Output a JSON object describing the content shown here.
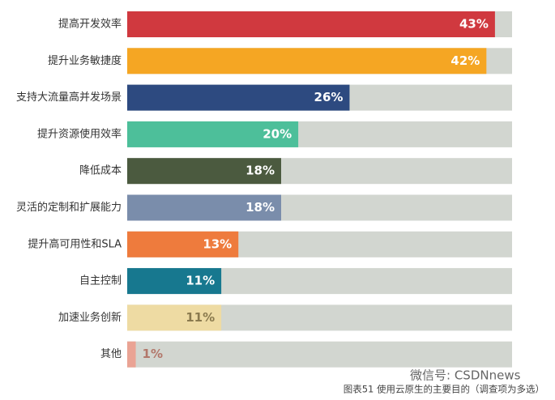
{
  "chart_data": {
    "type": "hbar",
    "categories": [
      "提高开发效率",
      "提升业务敏捷度",
      "支持大流量高并发场景",
      "提升资源使用效率",
      "降低成本",
      "灵活的定制和扩展能力",
      "提升高可用性和SLA",
      "自主控制",
      "加速业务创新",
      "其他"
    ],
    "values": [
      43,
      42,
      26,
      20,
      18,
      18,
      13,
      11,
      11,
      1
    ],
    "value_labels": [
      "43%",
      "42%",
      "26%",
      "20%",
      "18%",
      "18%",
      "13%",
      "11%",
      "11%",
      "1%"
    ],
    "colors": [
      "#d0393f",
      "#f5a623",
      "#2d4a80",
      "#4dbf9a",
      "#4b5a3f",
      "#7a8dab",
      "#ee7b3d",
      "#17788f",
      "#eedba3",
      "#eaa394"
    ],
    "label_colors": [
      "#ffffff",
      "#ffffff",
      "#ffffff",
      "#ffffff",
      "#ffffff",
      "#ffffff",
      "#ffffff",
      "#ffffff",
      "#8a7a4e",
      "#b2776a"
    ],
    "track_color": "#d2d6d0",
    "xlim": [
      0,
      45
    ],
    "caption": "图表51 使用云原生的主要目的（调查项为多选）",
    "watermark": "微信号: CSDNnews"
  }
}
